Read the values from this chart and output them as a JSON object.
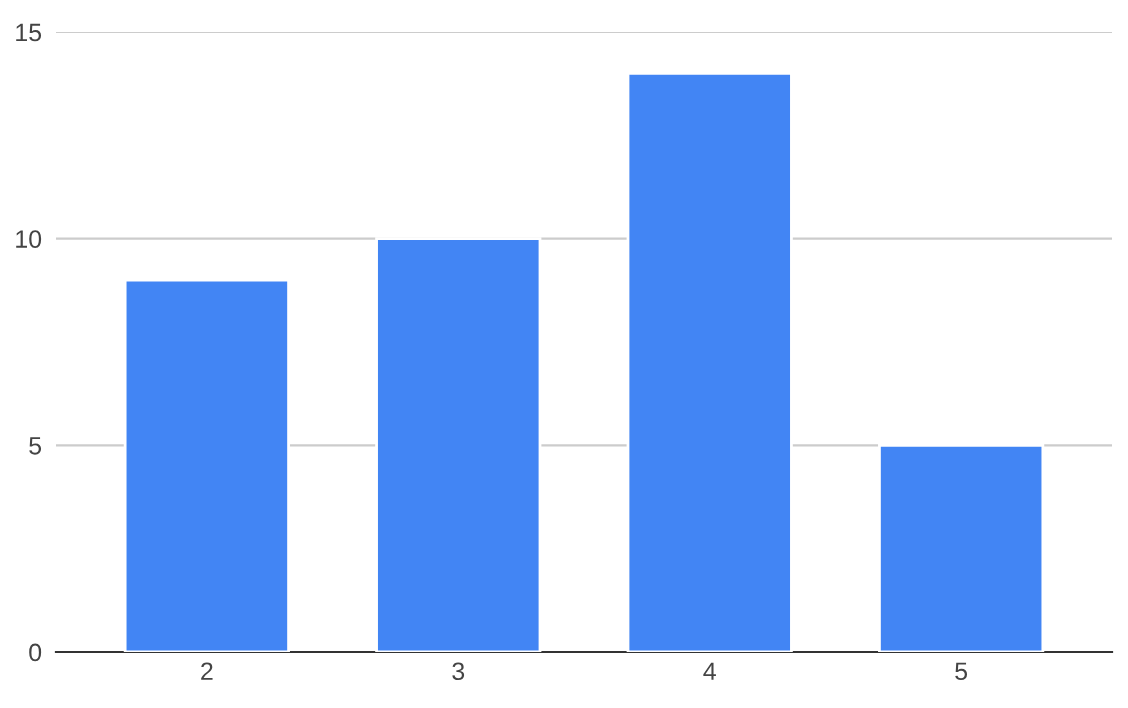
{
  "chart_data": {
    "type": "bar",
    "categories": [
      "2",
      "3",
      "4",
      "5"
    ],
    "values": [
      9,
      10,
      14,
      5
    ],
    "color": "#4285f4",
    "ylim": [
      0,
      15
    ],
    "yticks": [
      0,
      5,
      10,
      15
    ],
    "grid": "y",
    "legend": false
  }
}
